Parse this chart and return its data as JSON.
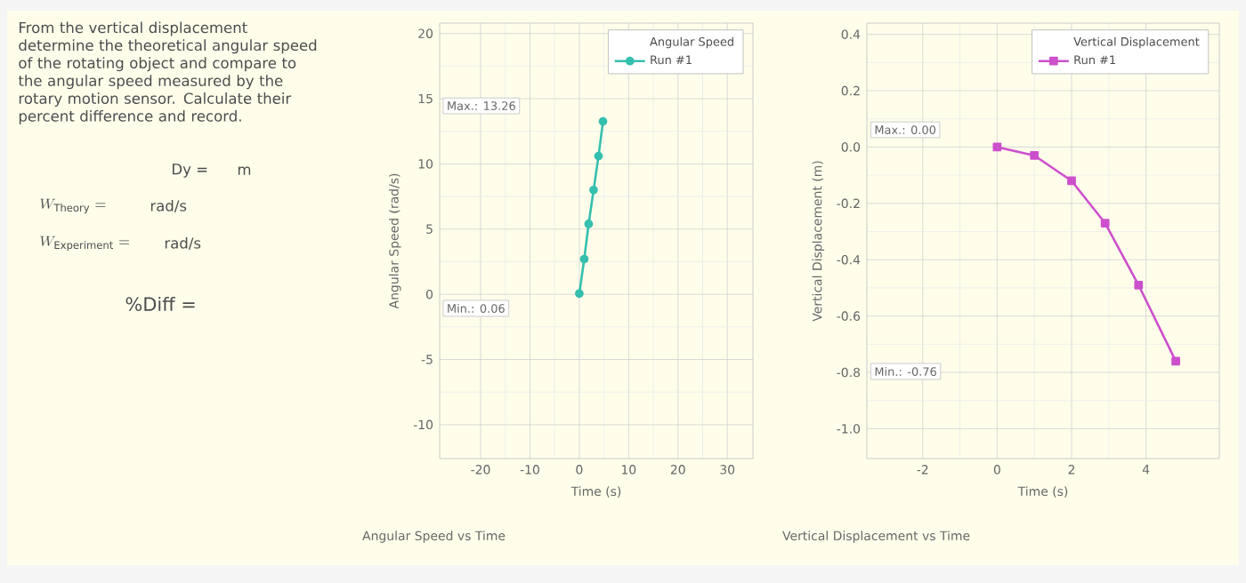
{
  "chart_data": [
    {
      "type": "other",
      "annotations": [
        "From the vertical displacement determine the theoretical angular speed of the rotating object and compare to the angular speed measured by the rotary motion sensor.  Calculate their percent difference and record.",
        "Dy =",
        "m",
        "W_{\\mathrm{Theory}} =",
        "rad/s",
        "W_{\\mathrm{Experiment}} =",
        "rad/s",
        "%Diff ="
      ]
    },
    {
      "type": "line",
      "title": "Angular Speed vs Time",
      "xlabel": "Time (s)",
      "ylabel": "Angular Speed (rad/s)",
      "legend_title": "Angular Speed",
      "legend": "top right",
      "grid": true,
      "marker": "circle",
      "x": [
        0,
        1,
        1.9,
        2.9,
        3.9,
        4.8
      ],
      "series": [
        {
          "name": "Run #1",
          "color": "#35bfae",
          "values": [
            0.06,
            2.7,
            5.4,
            8.0,
            10.6,
            13.26
          ]
        }
      ],
      "xlim": [
        -28.3,
        35.2
      ],
      "ylim": [
        -12.6,
        20.8
      ],
      "xticks": [
        -20,
        -10,
        0,
        10,
        20,
        30
      ],
      "yticks": [
        -10,
        -5,
        0,
        5,
        10,
        15,
        20
      ],
      "annotations": [
        "Max.: 13.26",
        "Min.: 0.06"
      ]
    },
    {
      "type": "line",
      "title": "Vertical Displacement vs Time",
      "xlabel": "Time (s)",
      "ylabel": "Vertical Displacement (m)",
      "legend_title": "Vertical Displacement",
      "legend": "top right",
      "grid": true,
      "marker": "square",
      "x": [
        0,
        1,
        2,
        2.9,
        3.8,
        4.8
      ],
      "series": [
        {
          "name": "Run #1",
          "color": "#cc4fcc",
          "values": [
            0,
            -0.03,
            -0.12,
            -0.27,
            -0.49,
            -0.76
          ]
        }
      ],
      "xlim": [
        -3.5,
        5.97
      ],
      "ylim": [
        -1.106,
        0.44
      ],
      "xticks": [
        -2,
        0,
        2,
        4
      ],
      "yticks": [
        0.4,
        0.2,
        {
          "value": 0,
          "label": "0.0"
        },
        -0.2,
        -0.4,
        -0.6,
        -0.8,
        {
          "value": -1,
          "label": "-1.0"
        }
      ],
      "annotations": [
        "Max.: 0.00",
        "Min.: -0.76"
      ]
    }
  ]
}
